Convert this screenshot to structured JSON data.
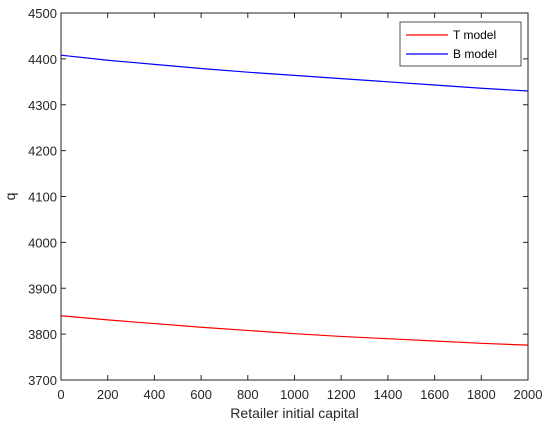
{
  "chart_data": {
    "type": "line",
    "title": "",
    "xlabel": "Retailer initial capital",
    "ylabel": "q",
    "xlim": [
      0,
      2000
    ],
    "ylim": [
      3700,
      4500
    ],
    "xticks": [
      0,
      200,
      400,
      600,
      800,
      1000,
      1200,
      1400,
      1600,
      1800,
      2000
    ],
    "yticks": [
      3700,
      3800,
      3900,
      4000,
      4100,
      4200,
      4300,
      4400,
      4500
    ],
    "xtick_labels": [
      "0",
      "200",
      "400",
      "600",
      "800",
      "1000",
      "1200",
      "1400",
      "1600",
      "1800",
      "2000"
    ],
    "ytick_labels": [
      "3700",
      "3800",
      "3900",
      "4000",
      "4100",
      "4200",
      "4300",
      "4400",
      "4500"
    ],
    "grid": false,
    "legend_position": "top-right",
    "x": [
      0,
      200,
      400,
      600,
      800,
      1000,
      1200,
      1400,
      1600,
      1800,
      2000
    ],
    "series": [
      {
        "name": "T model",
        "color": "#ff0000",
        "values": [
          3840,
          3831,
          3823,
          3815,
          3808,
          3801,
          3795,
          3790,
          3785,
          3780,
          3776
        ]
      },
      {
        "name": "B model",
        "color": "#0000ff",
        "values": [
          4408,
          4397,
          4388,
          4379,
          4371,
          4364,
          4357,
          4350,
          4343,
          4336,
          4330
        ]
      }
    ]
  }
}
